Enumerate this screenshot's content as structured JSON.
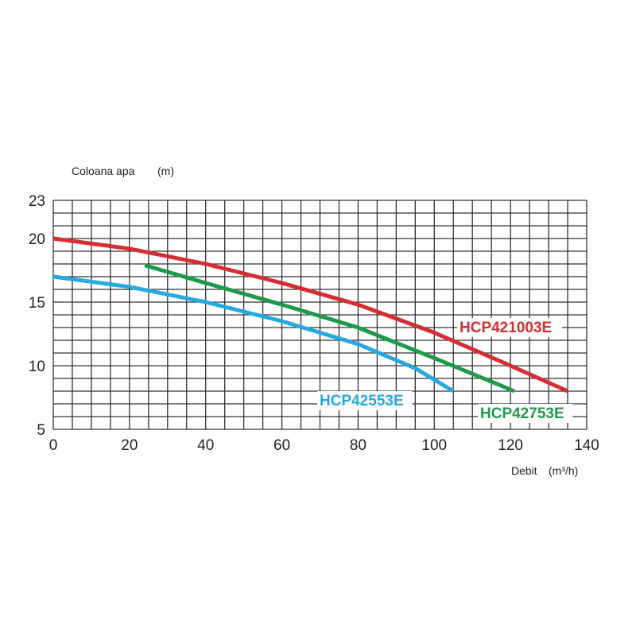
{
  "chart_data": {
    "type": "line",
    "title": "",
    "ylabel": "Coloana apa",
    "ylabel_unit": "(m)",
    "xlabel": "Debit",
    "xlabel_unit": "(m³/h)",
    "xlim": [
      0,
      140
    ],
    "ylim": [
      5,
      23
    ],
    "xticks": [
      0,
      20,
      40,
      60,
      80,
      100,
      120,
      140
    ],
    "yticks": [
      5,
      10,
      15,
      20,
      23
    ],
    "grid": true,
    "grid_x_step": 5,
    "grid_y_step": 1,
    "series": [
      {
        "name": "HCP421003E",
        "color": "#d62d34",
        "x": [
          0,
          20,
          40,
          60,
          80,
          100,
          120,
          135
        ],
        "y": [
          20,
          19.2,
          18,
          16.5,
          14.8,
          12.6,
          10,
          8
        ]
      },
      {
        "name": "HCP42753E",
        "color": "#1e9a4c",
        "x": [
          24,
          40,
          60,
          80,
          100,
          121
        ],
        "y": [
          17.9,
          16.5,
          14.8,
          13,
          10.6,
          8
        ]
      },
      {
        "name": "HCP42553E",
        "color": "#26a9e0",
        "x": [
          0,
          20,
          40,
          60,
          80,
          95,
          105
        ],
        "y": [
          17,
          16.2,
          15,
          13.5,
          11.7,
          9.8,
          8
        ]
      }
    ]
  }
}
